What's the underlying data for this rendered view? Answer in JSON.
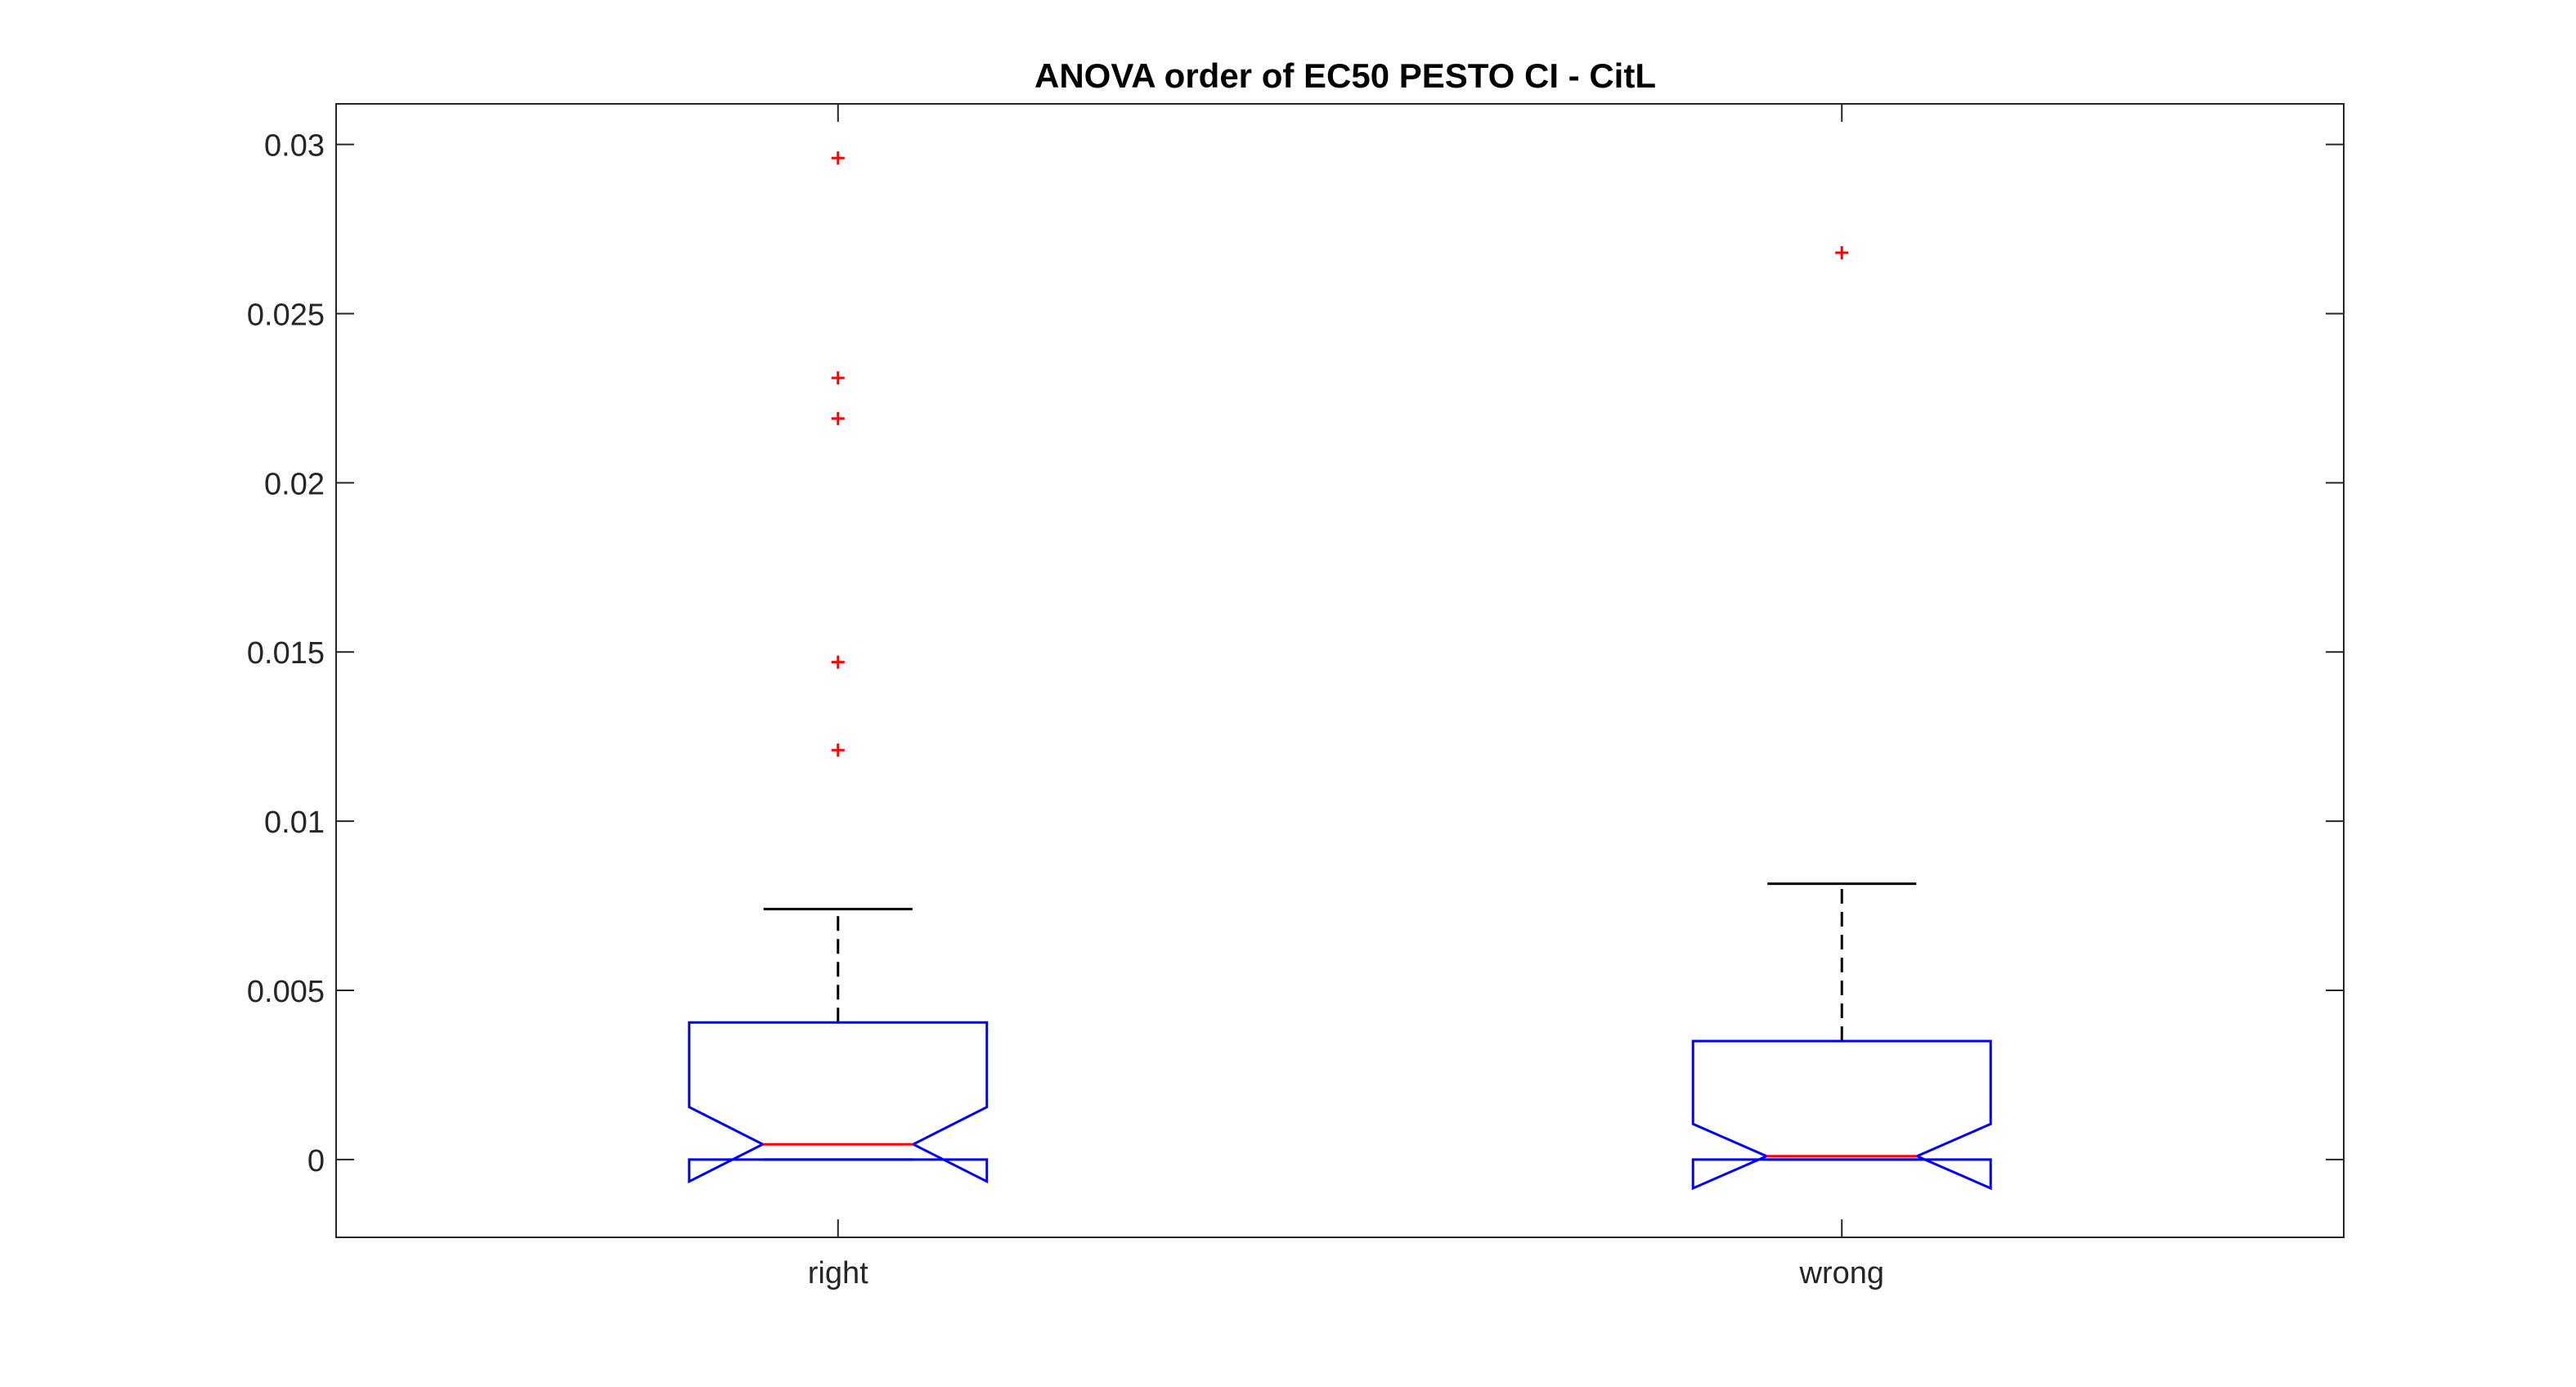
{
  "chart_data": {
    "type": "box",
    "title": "ANOVA order of EC50 PESTO CI - CitL",
    "xlabel": "",
    "ylabel": "",
    "categories": [
      "right",
      "wrong"
    ],
    "ylim": [
      -0.0023,
      0.0312
    ],
    "y_ticks": [
      0,
      0.005,
      0.01,
      0.015,
      0.02,
      0.025,
      0.03
    ],
    "y_tick_labels": [
      "0",
      "0.005",
      "0.01",
      "0.015",
      "0.02",
      "0.025",
      "0.03"
    ],
    "notched": true,
    "grid": false,
    "boxes": [
      {
        "category": "right",
        "whisker_low": 0.0,
        "q1": 0.0,
        "median": 0.00045,
        "q3": 0.00405,
        "whisker_high": 0.0074,
        "notch_low": -0.00065,
        "notch_high": 0.00155,
        "outliers": [
          0.0296,
          0.0231,
          0.0219,
          0.0147,
          0.0121
        ]
      },
      {
        "category": "wrong",
        "whisker_low": 0.0,
        "q1": 0.0,
        "median": 0.0001,
        "q3": 0.0035,
        "whisker_high": 0.00815,
        "notch_low": -0.00085,
        "notch_high": 0.00105,
        "outliers": [
          0.0268
        ]
      }
    ],
    "colors": {
      "box": "#0000ff",
      "median": "#ff0000",
      "whisker": "#000000",
      "outlier": "#ff0000",
      "axis": "#262626"
    }
  }
}
